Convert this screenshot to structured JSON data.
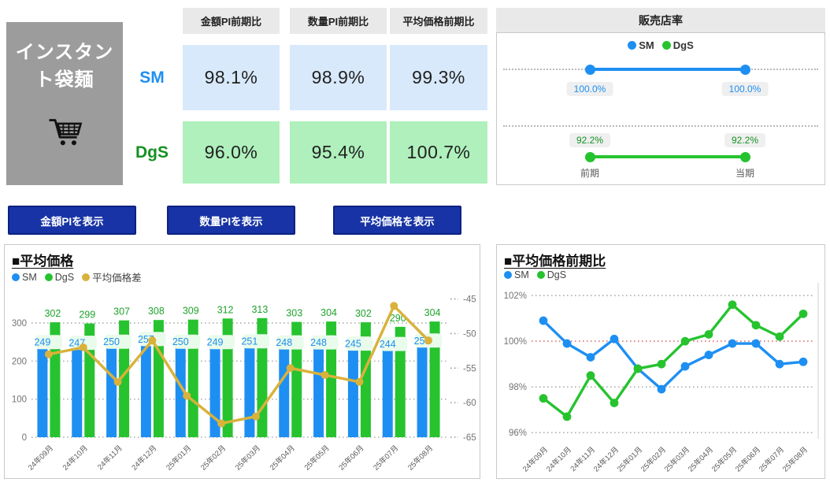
{
  "title_card": {
    "title": "インスタント袋麺"
  },
  "colors": {
    "sm_blue": "#1e8ff2",
    "dgs_green": "#26c32f",
    "dgs_text_green": "#149222",
    "diff_yellow": "#d9b23c",
    "sm_cell_bg": "#d8e9fb",
    "dgs_cell_bg": "#aff0bc",
    "button_blue": "#1733a5",
    "ref_red": "#de8c8c",
    "header_gray": "#e9e9e9",
    "card_gray": "#9c9c9c"
  },
  "kpi_table": {
    "headers": [
      "金額PI前期比",
      "数量PI前期比",
      "平均価格前期比"
    ],
    "rows": [
      {
        "label": "SM",
        "values": [
          "98.1%",
          "98.9%",
          "99.3%"
        ]
      },
      {
        "label": "DgS",
        "values": [
          "96.0%",
          "95.4%",
          "100.7%"
        ]
      }
    ]
  },
  "store_rate": {
    "title": "販売店率",
    "legend": [
      {
        "label": "SM",
        "color": "#1e8ff2"
      },
      {
        "label": "DgS",
        "color": "#26c32f"
      }
    ],
    "series": [
      {
        "name": "SM",
        "prev": "100.0%",
        "curr": "100.0%"
      },
      {
        "name": "DgS",
        "prev": "92.2%",
        "curr": "92.2%"
      }
    ],
    "x_labels": [
      "前期",
      "当期"
    ]
  },
  "buttons": [
    {
      "label": "金額PIを表示"
    },
    {
      "label": "数量PIを表示"
    },
    {
      "label": "平均価格を表示"
    }
  ],
  "chart_data": [
    {
      "type": "bar",
      "title": "■平均価格",
      "categories": [
        "24年09月",
        "24年10月",
        "24年11月",
        "24年12月",
        "25年01月",
        "25年02月",
        "25年03月",
        "25年04月",
        "25年05月",
        "25年06月",
        "25年07月",
        "25年08月"
      ],
      "series": [
        {
          "name": "SM",
          "type": "bar",
          "color": "#1e8ff2",
          "values": [
            249,
            247,
            250,
            257,
            250,
            249,
            251,
            248,
            248,
            245,
            244,
            253
          ]
        },
        {
          "name": "DgS",
          "type": "bar",
          "color": "#26c32f",
          "values": [
            302,
            299,
            307,
            308,
            309,
            312,
            313,
            303,
            304,
            302,
            290,
            304
          ]
        },
        {
          "name": "平均価格差",
          "type": "line",
          "axis": "secondary",
          "color": "#d9b23c",
          "values": [
            -53,
            -52,
            -57,
            -51,
            -59,
            -63,
            -62,
            -55,
            -56,
            -57,
            -46,
            -51
          ]
        }
      ],
      "y_left": {
        "ticks": [
          0,
          100,
          200,
          300
        ],
        "min": 0,
        "max": 385
      },
      "y_right": {
        "ticks": [
          -45,
          -50,
          -55,
          -60,
          -65
        ],
        "min": -65,
        "max": -43.8
      },
      "grid": true,
      "legend_position": "top-left"
    },
    {
      "type": "line",
      "title": "■平均価格前期比",
      "categories": [
        "24年09月",
        "24年10月",
        "24年11月",
        "24年12月",
        "25年01月",
        "25年02月",
        "25年03月",
        "25年04月",
        "25年05月",
        "25年06月",
        "25年07月",
        "25年08月"
      ],
      "series": [
        {
          "name": "SM",
          "color": "#1e8ff2",
          "values": [
            100.9,
            99.9,
            99.3,
            100.1,
            98.8,
            97.9,
            98.9,
            99.4,
            99.9,
            99.9,
            99.0,
            99.1
          ]
        },
        {
          "name": "DgS",
          "color": "#26c32f",
          "values": [
            97.5,
            96.7,
            98.5,
            97.3,
            98.8,
            99.0,
            100.0,
            100.3,
            101.6,
            100.7,
            100.2,
            101.2
          ]
        }
      ],
      "y": {
        "ticks": [
          96,
          98,
          100,
          102
        ],
        "min": 95.8,
        "max": 102.35,
        "unit": "%"
      },
      "ref_line": {
        "value": 100,
        "color": "#de8c8c"
      },
      "grid": true,
      "legend_position": "top-left"
    }
  ]
}
